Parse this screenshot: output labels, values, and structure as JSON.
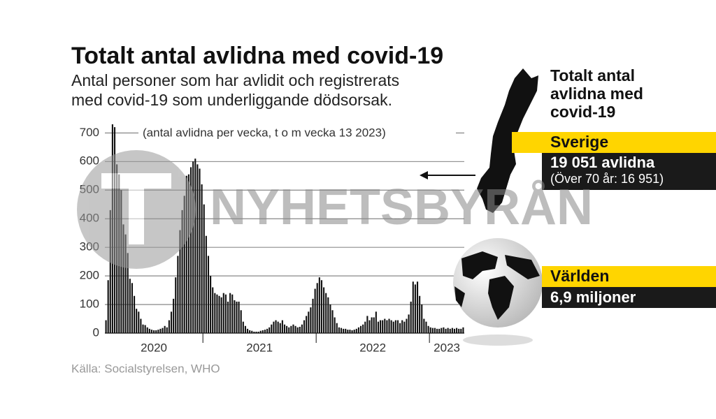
{
  "chart_data": {
    "type": "bar",
    "title": "Totalt antal avlidna med covid-19",
    "subtitle": [
      "Antal personer som har avlidit och registrerats",
      "med covid-19 som underliggande dödsorsak."
    ],
    "axis_note": "(antal avlidna per vecka, t o m vecka 13 2023)",
    "source": "Källa: Socialstyrelsen, WHO",
    "watermark": "NYHETSBYRÅN",
    "color": "#111111",
    "ylim": [
      0,
      730
    ],
    "yticks": [
      0,
      100,
      200,
      300,
      400,
      500,
      600,
      700
    ],
    "grid": true,
    "categories": [
      "2020",
      "2020",
      "2020",
      "2020",
      "2020",
      "2020",
      "2020",
      "2020",
      "2020",
      "2020",
      "2020",
      "2020",
      "2020",
      "2020",
      "2020",
      "2020",
      "2020",
      "2020",
      "2020",
      "2020",
      "2020",
      "2020",
      "2020",
      "2020",
      "2020",
      "2020",
      "2020",
      "2020",
      "2020",
      "2020",
      "2020",
      "2020",
      "2020",
      "2020",
      "2020",
      "2020",
      "2020",
      "2020",
      "2020",
      "2020",
      "2020",
      "2020",
      "2020",
      "2020",
      "2020",
      "2021",
      "2021",
      "2021",
      "2021",
      "2021",
      "2021",
      "2021",
      "2021",
      "2021",
      "2021",
      "2021",
      "2021",
      "2021",
      "2021",
      "2021",
      "2021",
      "2021",
      "2021",
      "2021",
      "2021",
      "2021",
      "2021",
      "2021",
      "2021",
      "2021",
      "2021",
      "2021",
      "2021",
      "2021",
      "2021",
      "2021",
      "2021",
      "2021",
      "2021",
      "2021",
      "2021",
      "2021",
      "2021",
      "2021",
      "2021",
      "2021",
      "2021",
      "2021",
      "2021",
      "2021",
      "2021",
      "2021",
      "2021",
      "2021",
      "2021",
      "2021",
      "2021",
      "2022",
      "2022",
      "2022",
      "2022",
      "2022",
      "2022",
      "2022",
      "2022",
      "2022",
      "2022",
      "2022",
      "2022",
      "2022",
      "2022",
      "2022",
      "2022",
      "2022",
      "2022",
      "2022",
      "2022",
      "2022",
      "2022",
      "2022",
      "2022",
      "2022",
      "2022",
      "2022",
      "2022",
      "2022",
      "2022",
      "2022",
      "2022",
      "2022",
      "2022",
      "2022",
      "2022",
      "2022",
      "2022",
      "2022",
      "2022",
      "2022",
      "2022",
      "2022",
      "2022",
      "2022",
      "2022",
      "2022",
      "2022",
      "2022",
      "2022",
      "2022",
      "2022",
      "2023",
      "2023",
      "2023",
      "2023",
      "2023",
      "2023",
      "2023",
      "2023",
      "2023",
      "2023",
      "2023",
      "2023",
      "2023",
      "2023",
      "2023",
      "2023"
    ],
    "values": [
      45,
      185,
      430,
      730,
      720,
      590,
      555,
      500,
      380,
      345,
      280,
      190,
      175,
      130,
      85,
      75,
      50,
      30,
      28,
      20,
      15,
      12,
      10,
      10,
      12,
      15,
      18,
      25,
      20,
      45,
      75,
      120,
      195,
      270,
      360,
      430,
      480,
      550,
      555,
      580,
      600,
      610,
      590,
      575,
      520,
      450,
      340,
      270,
      200,
      160,
      140,
      135,
      130,
      125,
      140,
      135,
      110,
      140,
      135,
      115,
      110,
      110,
      80,
      40,
      25,
      15,
      10,
      8,
      5,
      5,
      5,
      8,
      10,
      12,
      15,
      20,
      30,
      40,
      45,
      40,
      35,
      45,
      30,
      25,
      20,
      25,
      30,
      25,
      20,
      22,
      30,
      45,
      60,
      75,
      90,
      120,
      155,
      175,
      195,
      185,
      160,
      140,
      125,
      100,
      80,
      55,
      35,
      20,
      18,
      15,
      15,
      12,
      12,
      10,
      12,
      15,
      20,
      25,
      30,
      40,
      60,
      45,
      55,
      55,
      75,
      40,
      45,
      45,
      50,
      45,
      50,
      45,
      40,
      45,
      45,
      35,
      45,
      40,
      50,
      65,
      110,
      180,
      170,
      180,
      130,
      100,
      50,
      40,
      25,
      20,
      18,
      18,
      15,
      15,
      18,
      20,
      15,
      18,
      15,
      18,
      15,
      18,
      15,
      15,
      20
    ],
    "panel": {
      "title": [
        "Totalt antal",
        "avlidna med",
        "covid-19"
      ],
      "sweden": {
        "label": "Sverige",
        "value": "19 051 avlidna",
        "note": "(Över 70 år: 16 951)"
      },
      "world": {
        "label": "Världen",
        "value": "6,9 miljoner"
      }
    }
  }
}
